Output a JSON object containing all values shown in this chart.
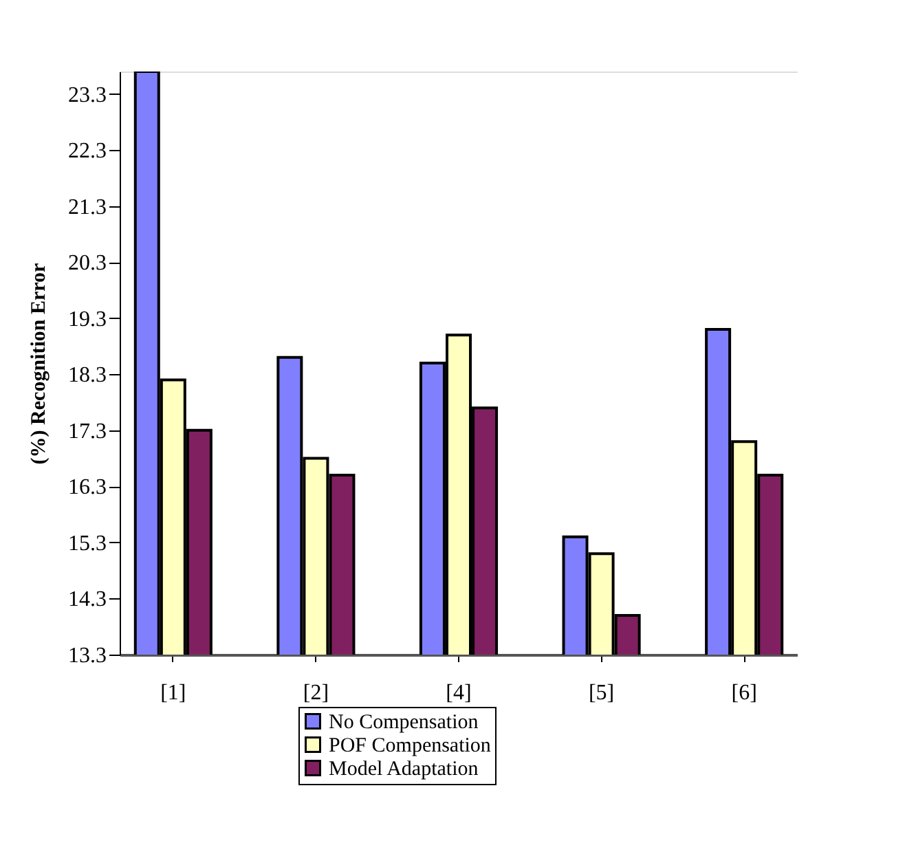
{
  "chart_data": {
    "type": "bar",
    "ylabel": "(%) Recognition Error",
    "categories": [
      "[1]",
      "[2]",
      "[4]",
      "[5]",
      "[6]"
    ],
    "series": [
      {
        "name": "No Compensation",
        "color": "#8080ff",
        "values": [
          23.7,
          18.6,
          18.5,
          15.4,
          19.1
        ]
      },
      {
        "name": "POF Compensation",
        "color": "#ffffc0",
        "values": [
          18.2,
          16.8,
          19.0,
          15.1,
          17.1
        ]
      },
      {
        "name": "Model Adaptation",
        "color": "#802060",
        "values": [
          17.3,
          16.5,
          17.7,
          14.0,
          16.5
        ]
      }
    ],
    "ylim": [
      13.3,
      23.7
    ],
    "yticks": [
      13.3,
      14.3,
      15.3,
      16.3,
      17.3,
      18.3,
      19.3,
      20.3,
      21.3,
      22.3,
      23.3
    ],
    "grid": false,
    "legend": "bottom"
  }
}
